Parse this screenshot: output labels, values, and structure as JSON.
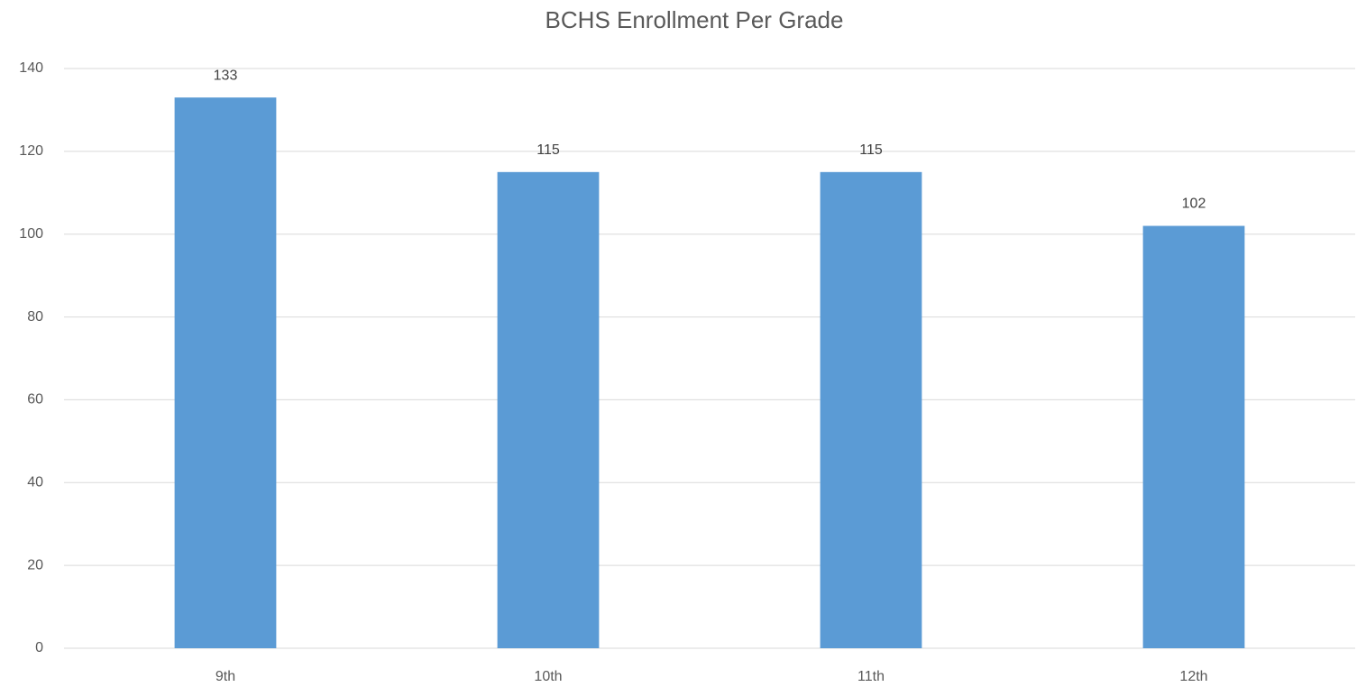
{
  "chart_data": {
    "type": "bar",
    "title": "BCHS Enrollment Per Grade",
    "categories": [
      "9th",
      "10th",
      "11th",
      "12th"
    ],
    "values": [
      133,
      115,
      115,
      102
    ],
    "color": "#5b9bd5",
    "ylim": [
      0,
      140
    ],
    "yticks": [
      0,
      20,
      40,
      60,
      80,
      100,
      120,
      140
    ],
    "grid": true
  }
}
